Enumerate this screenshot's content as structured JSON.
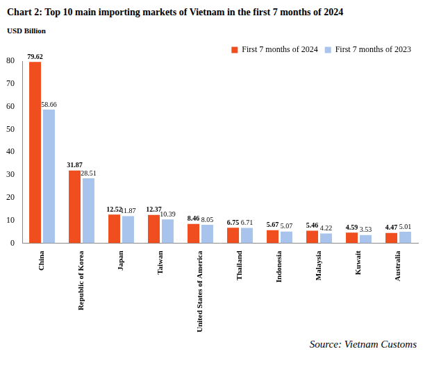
{
  "chart_data": {
    "type": "bar",
    "title": "Chart 2: Top 10 main importing markets of Vietnam in the first 7 months of 2024",
    "ylabel": "USD Billion",
    "source": "Source: Vietnam Customs",
    "categories": [
      "China",
      "Republic of Korea",
      "Japan",
      "Taiwan",
      "United States of America",
      "Thailand",
      "Indonesia",
      "Malaysia",
      "Kuwait",
      "Australia"
    ],
    "series": [
      {
        "name": "First 7 months of 2024",
        "color": "#f04e1e",
        "values": [
          79.62,
          31.87,
          12.52,
          12.37,
          8.46,
          6.75,
          5.67,
          5.46,
          4.59,
          4.47
        ]
      },
      {
        "name": "First 7 months of 2023",
        "color": "#a8c4ec",
        "values": [
          58.66,
          28.51,
          11.87,
          10.39,
          8.05,
          6.71,
          5.07,
          4.22,
          3.53,
          5.01
        ]
      }
    ],
    "ylim": [
      0,
      80
    ],
    "yticks": [
      0,
      10,
      20,
      30,
      40,
      50,
      60,
      70,
      80
    ],
    "grid": false,
    "legend": "top-right",
    "data_labels": true
  }
}
